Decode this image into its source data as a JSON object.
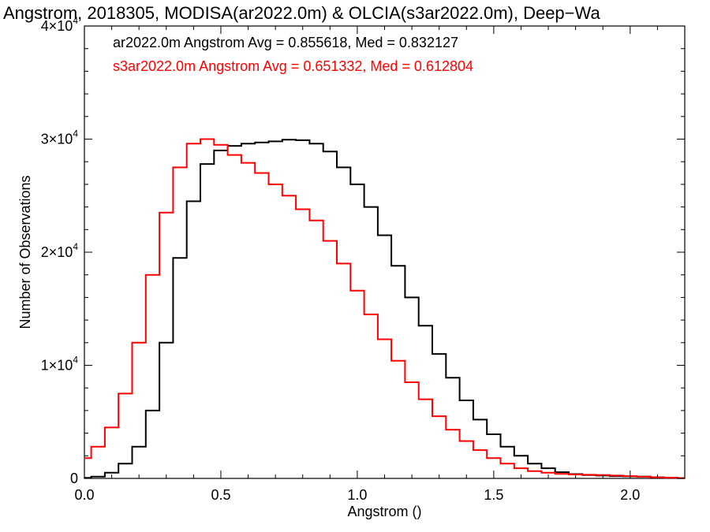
{
  "chart_data": {
    "type": "line",
    "title": "Angstrom, 2018305, MODISA(ar2022.0m) & OLCIA(s3ar2022.0m), Deep−Wa",
    "xlabel": "Angstrom ()",
    "ylabel": "Number of Observations",
    "xlim": [
      0.0,
      2.2
    ],
    "ylim": [
      0,
      40000
    ],
    "x_ticks": [
      {
        "value": 0.0,
        "label": "0.0"
      },
      {
        "value": 0.5,
        "label": "0.5"
      },
      {
        "value": 1.0,
        "label": "1.0"
      },
      {
        "value": 1.5,
        "label": "1.5"
      },
      {
        "value": 2.0,
        "label": "2.0"
      }
    ],
    "y_ticks": [
      {
        "value": 0,
        "label": "0",
        "exp": ""
      },
      {
        "value": 10000,
        "label": "1×10",
        "exp": "4"
      },
      {
        "value": 20000,
        "label": "2×10",
        "exp": "4"
      },
      {
        "value": 30000,
        "label": "3×10",
        "exp": "4"
      },
      {
        "value": 40000,
        "label": "4×10",
        "exp": "4"
      }
    ],
    "grid": false,
    "legend_position": "top-left",
    "legend": [
      {
        "text": "ar2022.0m Angstrom Avg = 0.855618, Med = 0.832127",
        "color": "#000000"
      },
      {
        "text": "s3ar2022.0m Angstrom Avg = 0.651332, Med = 0.612804",
        "color": "#ff0000"
      }
    ],
    "series": [
      {
        "color": "#000000",
        "style": "step",
        "x": [
          0.0,
          0.05,
          0.1,
          0.15,
          0.2,
          0.25,
          0.3,
          0.35,
          0.4,
          0.45,
          0.5,
          0.55,
          0.6,
          0.65,
          0.7,
          0.75,
          0.8,
          0.85,
          0.9,
          0.95,
          1.0,
          1.05,
          1.1,
          1.15,
          1.2,
          1.25,
          1.3,
          1.35,
          1.4,
          1.45,
          1.5,
          1.55,
          1.6,
          1.65,
          1.7,
          1.75,
          1.8,
          1.85,
          1.9,
          1.95,
          2.0,
          2.05,
          2.1,
          2.15,
          2.2
        ],
        "y": [
          50,
          150,
          500,
          1300,
          2800,
          6000,
          12000,
          19500,
          24500,
          27800,
          29000,
          29400,
          29600,
          29700,
          29800,
          29950,
          29900,
          29600,
          28900,
          27500,
          26000,
          24000,
          21500,
          18800,
          16000,
          13500,
          11000,
          8900,
          6900,
          5200,
          3900,
          2800,
          2000,
          1300,
          900,
          550,
          380,
          300,
          250,
          200,
          180,
          150,
          100,
          50,
          30
        ]
      },
      {
        "color": "#ff0000",
        "style": "step",
        "x": [
          0.0,
          0.05,
          0.1,
          0.15,
          0.2,
          0.25,
          0.3,
          0.35,
          0.4,
          0.45,
          0.5,
          0.55,
          0.6,
          0.65,
          0.7,
          0.75,
          0.8,
          0.85,
          0.9,
          0.95,
          1.0,
          1.05,
          1.1,
          1.15,
          1.2,
          1.25,
          1.3,
          1.35,
          1.4,
          1.45,
          1.5,
          1.55,
          1.6,
          1.65,
          1.7,
          1.75,
          1.8,
          1.85,
          1.9,
          1.95,
          2.0,
          2.05,
          2.1,
          2.15,
          2.2
        ],
        "y": [
          1800,
          2800,
          4500,
          7500,
          12000,
          18000,
          23500,
          27500,
          29600,
          30000,
          29500,
          28600,
          27900,
          27000,
          26000,
          25000,
          23800,
          22800,
          21000,
          19000,
          16600,
          14500,
          12300,
          10400,
          8500,
          7000,
          5500,
          4300,
          3300,
          2500,
          1800,
          1300,
          900,
          650,
          500,
          400,
          350,
          320,
          300,
          250,
          200,
          150,
          100,
          60,
          30
        ]
      }
    ]
  }
}
